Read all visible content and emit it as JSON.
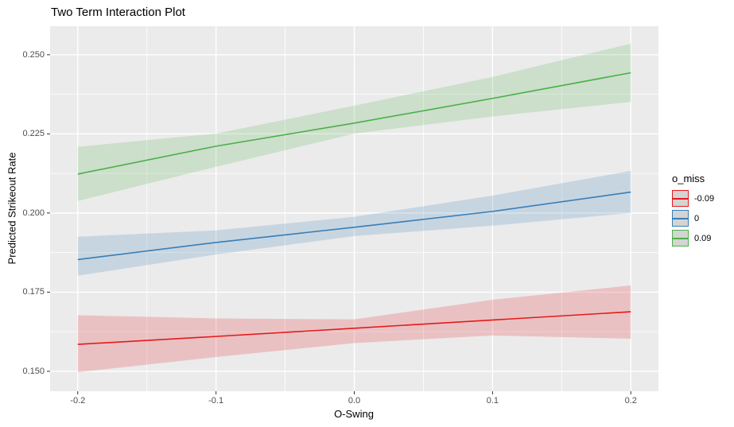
{
  "title": "Two Term Interaction Plot",
  "chart_data": {
    "type": "line",
    "title": "Two Term Interaction Plot",
    "xlabel": "O-Swing",
    "ylabel": "Predicted Strikeout Rate",
    "x": [
      -0.2,
      -0.1,
      0.0,
      0.1,
      0.2
    ],
    "xlim": [
      -0.22,
      0.22
    ],
    "ylim": [
      0.1437,
      0.259
    ],
    "x_ticks": {
      "values": [
        -0.2,
        -0.1,
        0.0,
        0.1,
        0.2
      ],
      "labels": [
        "-0.2",
        "-0.1",
        "0.0",
        "0.1",
        "0.2"
      ]
    },
    "y_ticks": {
      "values": [
        0.15,
        0.175,
        0.2,
        0.225,
        0.25
      ],
      "labels": [
        "0.150",
        "0.175",
        "0.200",
        "0.225",
        "0.250"
      ]
    },
    "x_minor": [
      -0.15,
      -0.05,
      0.05,
      0.15
    ],
    "y_minor": [
      0.1625,
      0.1875,
      0.2125,
      0.2375
    ],
    "grid": "white major and minor gridlines on gray panel",
    "legend": {
      "title": "o_miss",
      "position": "right",
      "entries": [
        {
          "label": "-0.09",
          "color": "#E41A1C"
        },
        {
          "label": "0",
          "color": "#377EB8"
        },
        {
          "label": "0.09",
          "color": "#4DAF4A"
        }
      ]
    },
    "series": [
      {
        "name": "-0.09",
        "color": "#E41A1C",
        "values": [
          0.1585,
          0.161,
          0.1636,
          0.1662,
          0.1688
        ],
        "ci_upper": [
          0.1677,
          0.1667,
          0.1664,
          0.1726,
          0.1771
        ],
        "ci_lower": [
          0.1497,
          0.1545,
          0.1589,
          0.1613,
          0.1603
        ]
      },
      {
        "name": "0",
        "color": "#377EB8",
        "values": [
          0.1853,
          0.1907,
          0.1955,
          0.2005,
          0.2066
        ],
        "ci_upper": [
          0.1925,
          0.1945,
          0.1988,
          0.2055,
          0.2133
        ],
        "ci_lower": [
          0.1802,
          0.1869,
          0.1927,
          0.196,
          0.2
        ]
      },
      {
        "name": "0.09",
        "color": "#4DAF4A",
        "values": [
          0.2123,
          0.2211,
          0.2284,
          0.2362,
          0.2443
        ],
        "ci_upper": [
          0.2209,
          0.2251,
          0.2339,
          0.243,
          0.2535
        ],
        "ci_lower": [
          0.2038,
          0.2146,
          0.2251,
          0.2305,
          0.2351
        ]
      }
    ],
    "style": {
      "panel_bg": "#EBEBEB",
      "grid_color": "#FFFFFF",
      "ribbon_opacity": 0.2,
      "line_width": 1.6,
      "tick_color": "#333333",
      "tick_label_color": "#4D4D4D",
      "legend_key_fill": "#D4D4D4"
    }
  }
}
